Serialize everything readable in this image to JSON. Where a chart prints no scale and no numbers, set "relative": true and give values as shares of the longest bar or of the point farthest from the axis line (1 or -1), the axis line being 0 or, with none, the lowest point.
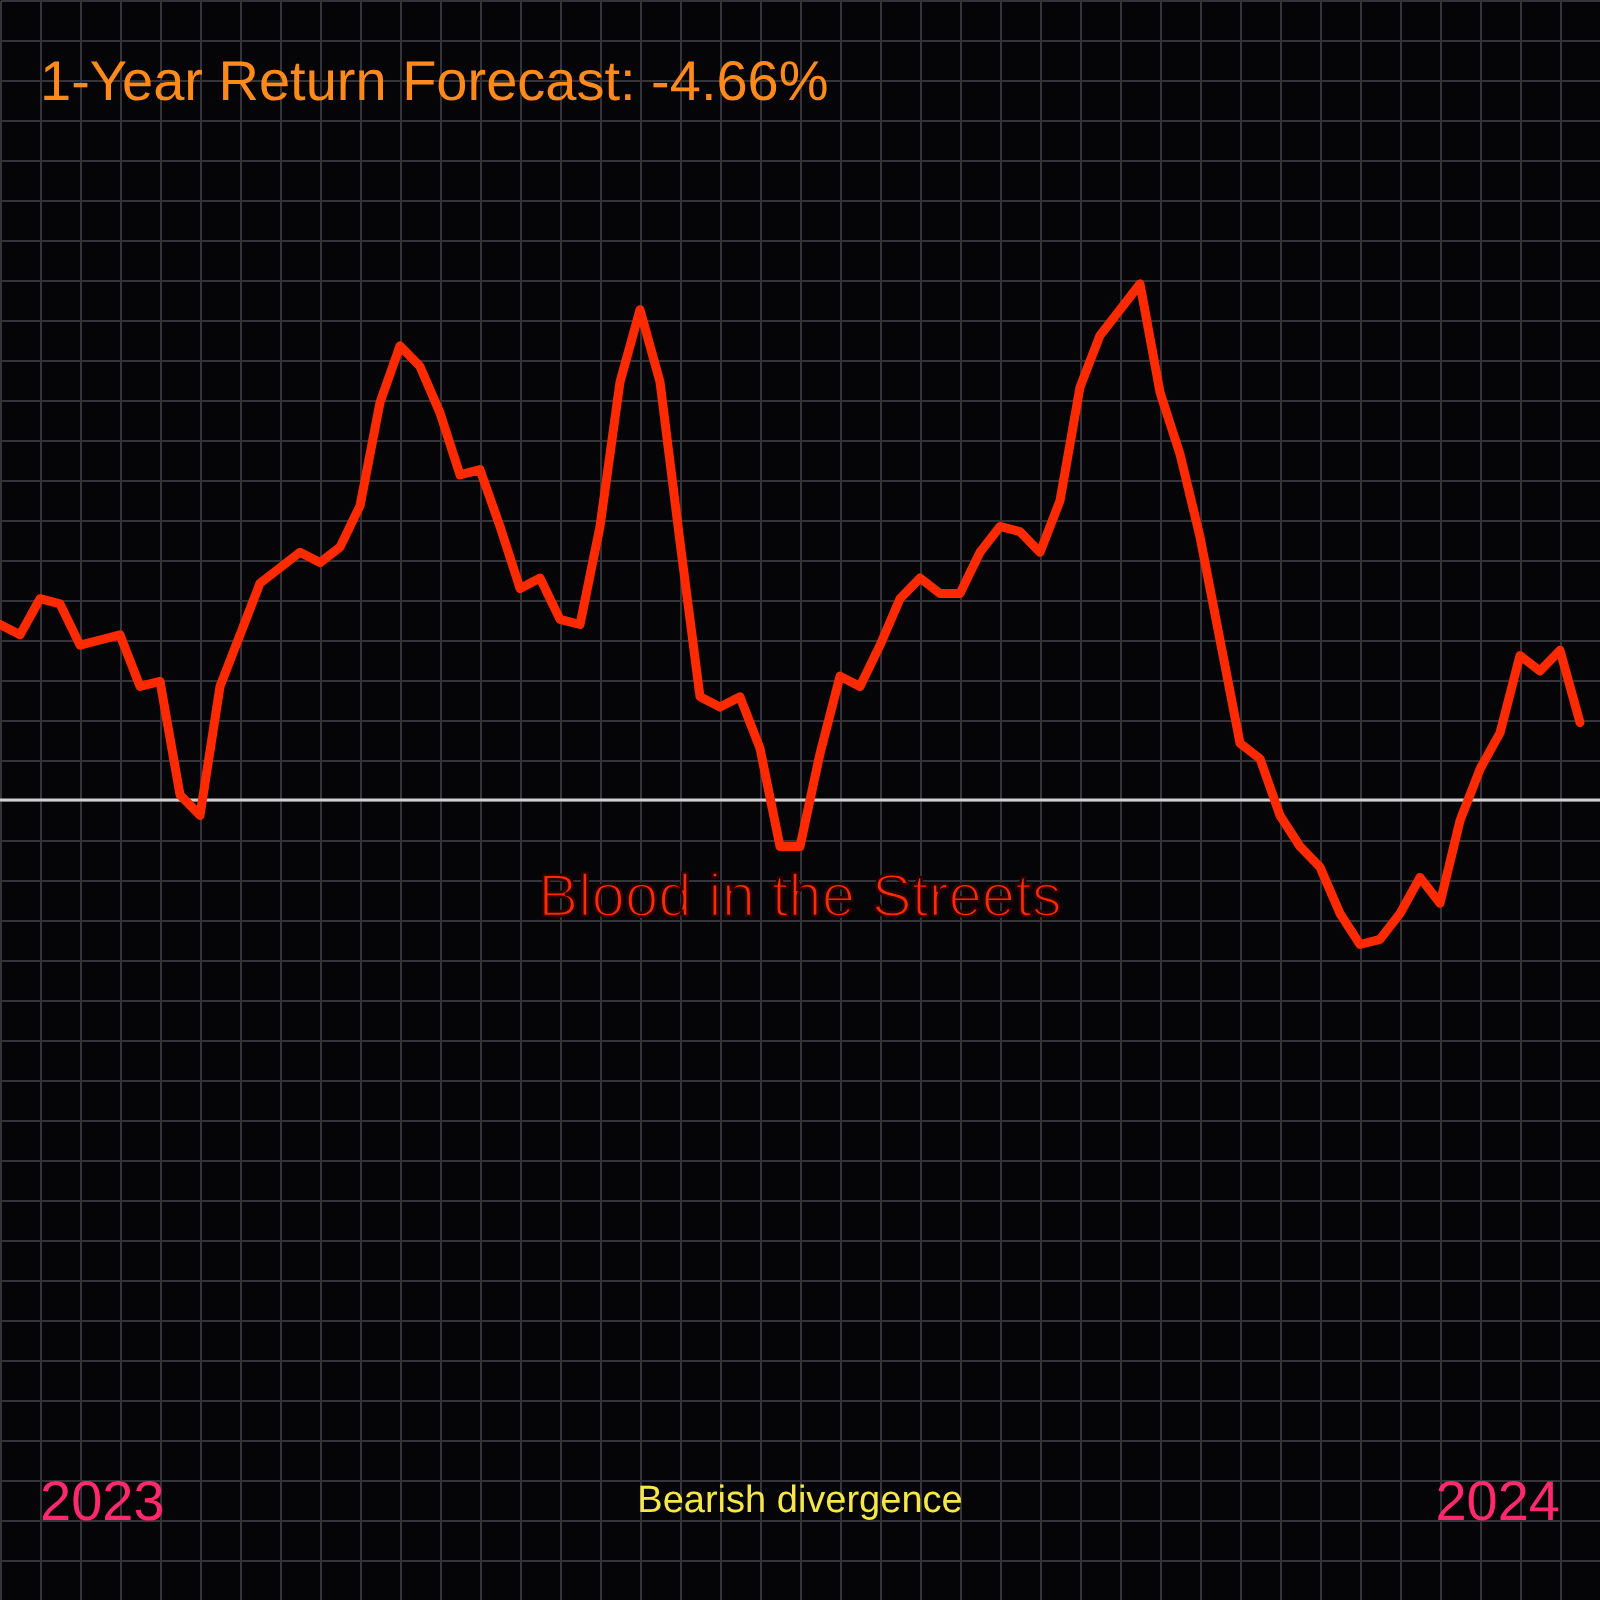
{
  "chart_data": {
    "type": "line",
    "title": "1-Year Return Forecast: -4.66%",
    "relative": true,
    "categories": [
      null,
      null,
      null,
      null,
      null,
      null,
      null,
      null,
      null,
      null,
      null,
      null,
      null,
      null,
      null,
      null,
      null,
      null,
      null,
      null,
      null,
      null,
      null,
      null,
      null,
      null,
      null,
      null,
      null,
      null,
      null,
      null,
      null,
      null,
      null,
      null,
      null,
      null,
      null,
      null,
      null,
      null,
      null,
      null,
      null,
      null,
      null,
      null,
      null,
      null,
      null,
      null,
      null,
      null,
      null,
      null,
      null,
      null,
      null,
      null,
      null,
      null,
      null,
      null,
      null,
      null,
      null,
      null,
      null,
      null,
      null,
      null,
      null,
      null,
      null,
      null,
      null,
      null,
      null,
      null
    ],
    "series": [
      {
        "color": "#ff2a00",
        "values": [
          0.34,
          0.32,
          0.39,
          0.38,
          0.3,
          0.31,
          0.32,
          0.22,
          0.23,
          0.01,
          -0.03,
          0.22,
          0.32,
          0.42,
          0.45,
          0.48,
          0.46,
          0.49,
          0.57,
          0.77,
          0.88,
          0.84,
          0.75,
          0.63,
          0.64,
          0.53,
          0.41,
          0.43,
          0.35,
          0.34,
          0.53,
          0.81,
          0.95,
          0.81,
          0.5,
          0.2,
          0.18,
          0.2,
          0.1,
          -0.09,
          -0.09,
          0.09,
          0.24,
          0.22,
          0.3,
          0.39,
          0.43,
          0.4,
          0.4,
          0.48,
          0.53,
          0.52,
          0.48,
          0.58,
          0.8,
          0.9,
          0.95,
          1,
          0.79,
          0.67,
          0.51,
          0.31,
          0.11,
          0.08,
          -0.03,
          -0.09,
          -0.13,
          -0.22,
          -0.28,
          -0.27,
          -0.22,
          -0.15,
          -0.2,
          -0.04,
          0.06,
          0.13,
          0.28,
          0.25,
          0.29,
          0.15
        ]
      }
    ],
    "ref_lines": [
      {
        "axis": "y",
        "value": 0,
        "color": "#cfcfcf"
      }
    ],
    "annotations": [
      "Blood in the Streets",
      "2023",
      "Bearish divergence",
      "2024"
    ],
    "grid": true,
    "marker": "none",
    "line_style": "solid"
  }
}
